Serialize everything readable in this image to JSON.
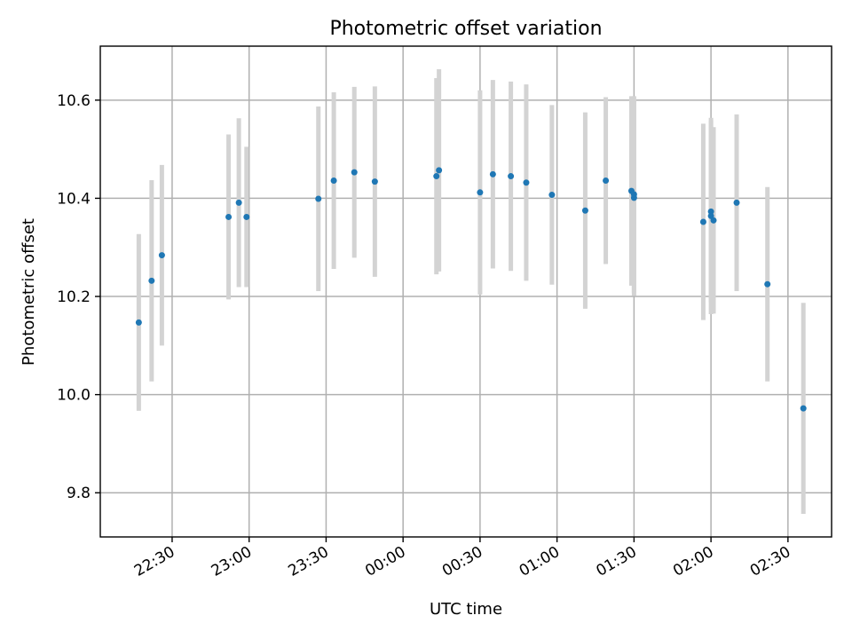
{
  "chart_data": {
    "type": "scatter",
    "title": "Photometric offset variation",
    "xlabel": "UTC time",
    "ylabel": "Photometric offset",
    "x_axis": "time",
    "xlim": [
      "22:02",
      "02:47"
    ],
    "ylim": [
      9.71,
      10.71
    ],
    "x_ticks": [
      "22:30",
      "23:00",
      "23:30",
      "00:00",
      "00:30",
      "01:00",
      "01:30",
      "02:00",
      "02:30"
    ],
    "y_ticks": [
      9.8,
      10.0,
      10.2,
      10.4,
      10.6
    ],
    "grid": true,
    "colors": {
      "point": "#1f77b4",
      "errorbar": "#d3d3d3"
    },
    "series": [
      {
        "points": [
          {
            "t": "22:17",
            "y": 10.147,
            "err": 0.18
          },
          {
            "t": "22:22",
            "y": 10.232,
            "err": 0.205
          },
          {
            "t": "22:26",
            "y": 10.284,
            "err": 0.184
          },
          {
            "t": "22:52",
            "y": 10.362,
            "err": 0.168
          },
          {
            "t": "22:56",
            "y": 10.391,
            "err": 0.172
          },
          {
            "t": "22:59",
            "y": 10.362,
            "err": 0.143
          },
          {
            "t": "23:27",
            "y": 10.399,
            "err": 0.188
          },
          {
            "t": "23:33",
            "y": 10.436,
            "err": 0.18
          },
          {
            "t": "23:41",
            "y": 10.453,
            "err": 0.174
          },
          {
            "t": "23:49",
            "y": 10.434,
            "err": 0.194
          },
          {
            "t": "00:13",
            "y": 10.445,
            "err": 0.2
          },
          {
            "t": "00:14",
            "y": 10.457,
            "err": 0.206
          },
          {
            "t": "00:30",
            "y": 10.412,
            "err": 0.208
          },
          {
            "t": "00:35",
            "y": 10.449,
            "err": 0.192
          },
          {
            "t": "00:42",
            "y": 10.445,
            "err": 0.193
          },
          {
            "t": "00:48",
            "y": 10.432,
            "err": 0.2
          },
          {
            "t": "00:58",
            "y": 10.407,
            "err": 0.183
          },
          {
            "t": "01:11",
            "y": 10.375,
            "err": 0.2
          },
          {
            "t": "01:19",
            "y": 10.436,
            "err": 0.17
          },
          {
            "t": "01:29",
            "y": 10.415,
            "err": 0.193
          },
          {
            "t": "01:30",
            "y": 10.401,
            "err": 0.2
          },
          {
            "t": "01:30",
            "y": 10.408,
            "err": 0.2
          },
          {
            "t": "01:57",
            "y": 10.352,
            "err": 0.2
          },
          {
            "t": "02:00",
            "y": 10.373,
            "err": 0.185
          },
          {
            "t": "02:00",
            "y": 10.364,
            "err": 0.2
          },
          {
            "t": "02:01",
            "y": 10.355,
            "err": 0.19
          },
          {
            "t": "02:10",
            "y": 10.391,
            "err": 0.18
          },
          {
            "t": "02:22",
            "y": 10.225,
            "err": 0.198
          },
          {
            "t": "02:36",
            "y": 9.972,
            "err": 0.215
          }
        ]
      }
    ]
  }
}
